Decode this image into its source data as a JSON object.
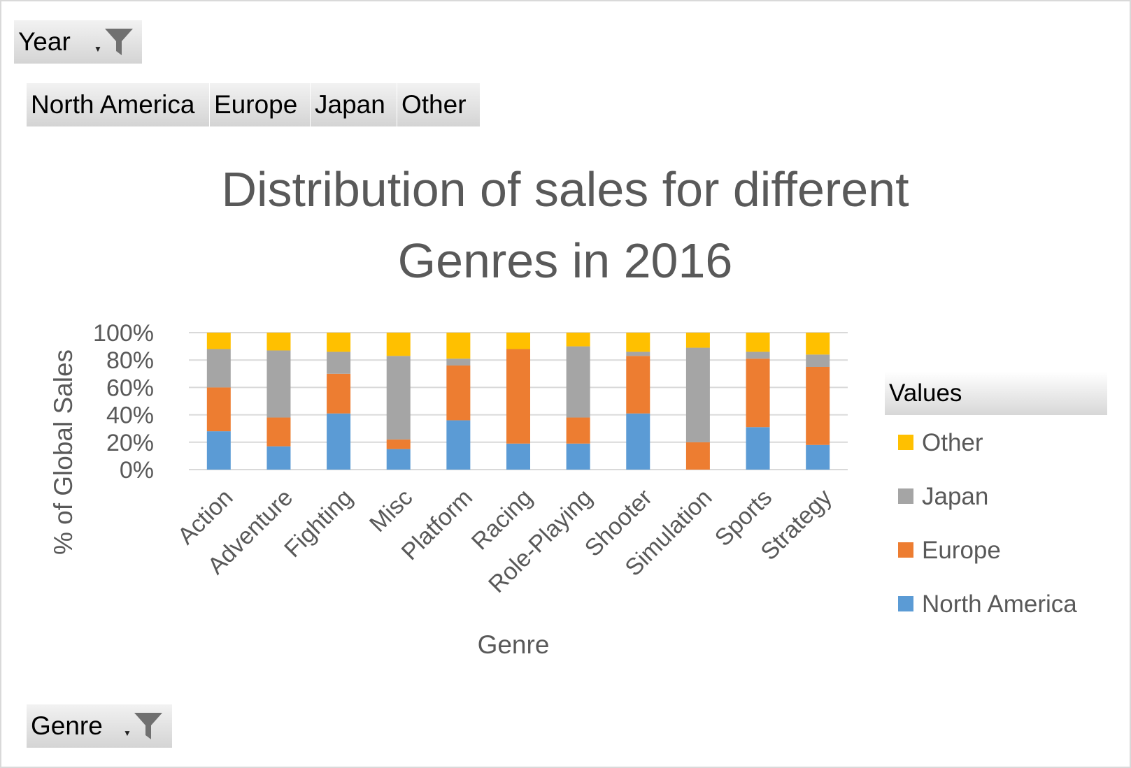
{
  "filters": {
    "year_label": "Year",
    "genre_label": "Genre"
  },
  "pivot_columns": [
    "North America",
    "Europe",
    "Japan",
    "Other"
  ],
  "legend": {
    "header": "Values",
    "items": [
      {
        "label": "Other",
        "color": "#ffc000"
      },
      {
        "label": "Japan",
        "color": "#a5a5a5"
      },
      {
        "label": "Europe",
        "color": "#ed7d31"
      },
      {
        "label": "North America",
        "color": "#5b9bd5"
      }
    ]
  },
  "chart_data": {
    "type": "bar",
    "stacked": "percent",
    "title": "Distribution of sales for different Genres in 2016",
    "title_lines": [
      "Distribution of sales for different",
      "Genres in 2016"
    ],
    "xlabel": "Genre",
    "ylabel": "% of Global Sales",
    "ylim": [
      0,
      100
    ],
    "yticks": [
      "0%",
      "20%",
      "40%",
      "60%",
      "80%",
      "100%"
    ],
    "grid": true,
    "legend_position": "right",
    "categories": [
      "Action",
      "Adventure",
      "Fighting",
      "Misc",
      "Platform",
      "Racing",
      "Role-Playing",
      "Shooter",
      "Simulation",
      "Sports",
      "Strategy"
    ],
    "series": [
      {
        "name": "North America",
        "color": "#5b9bd5",
        "values": [
          28,
          17,
          41,
          15,
          36,
          19,
          19,
          41,
          0,
          31,
          18
        ]
      },
      {
        "name": "Europe",
        "color": "#ed7d31",
        "values": [
          32,
          21,
          29,
          7,
          40,
          69,
          19,
          42,
          20,
          50,
          57
        ]
      },
      {
        "name": "Japan",
        "color": "#a5a5a5",
        "values": [
          28,
          49,
          16,
          61,
          5,
          0,
          52,
          3,
          69,
          5,
          9
        ]
      },
      {
        "name": "Other",
        "color": "#ffc000",
        "values": [
          12,
          13,
          14,
          17,
          19,
          12,
          10,
          14,
          11,
          14,
          16
        ]
      }
    ]
  }
}
